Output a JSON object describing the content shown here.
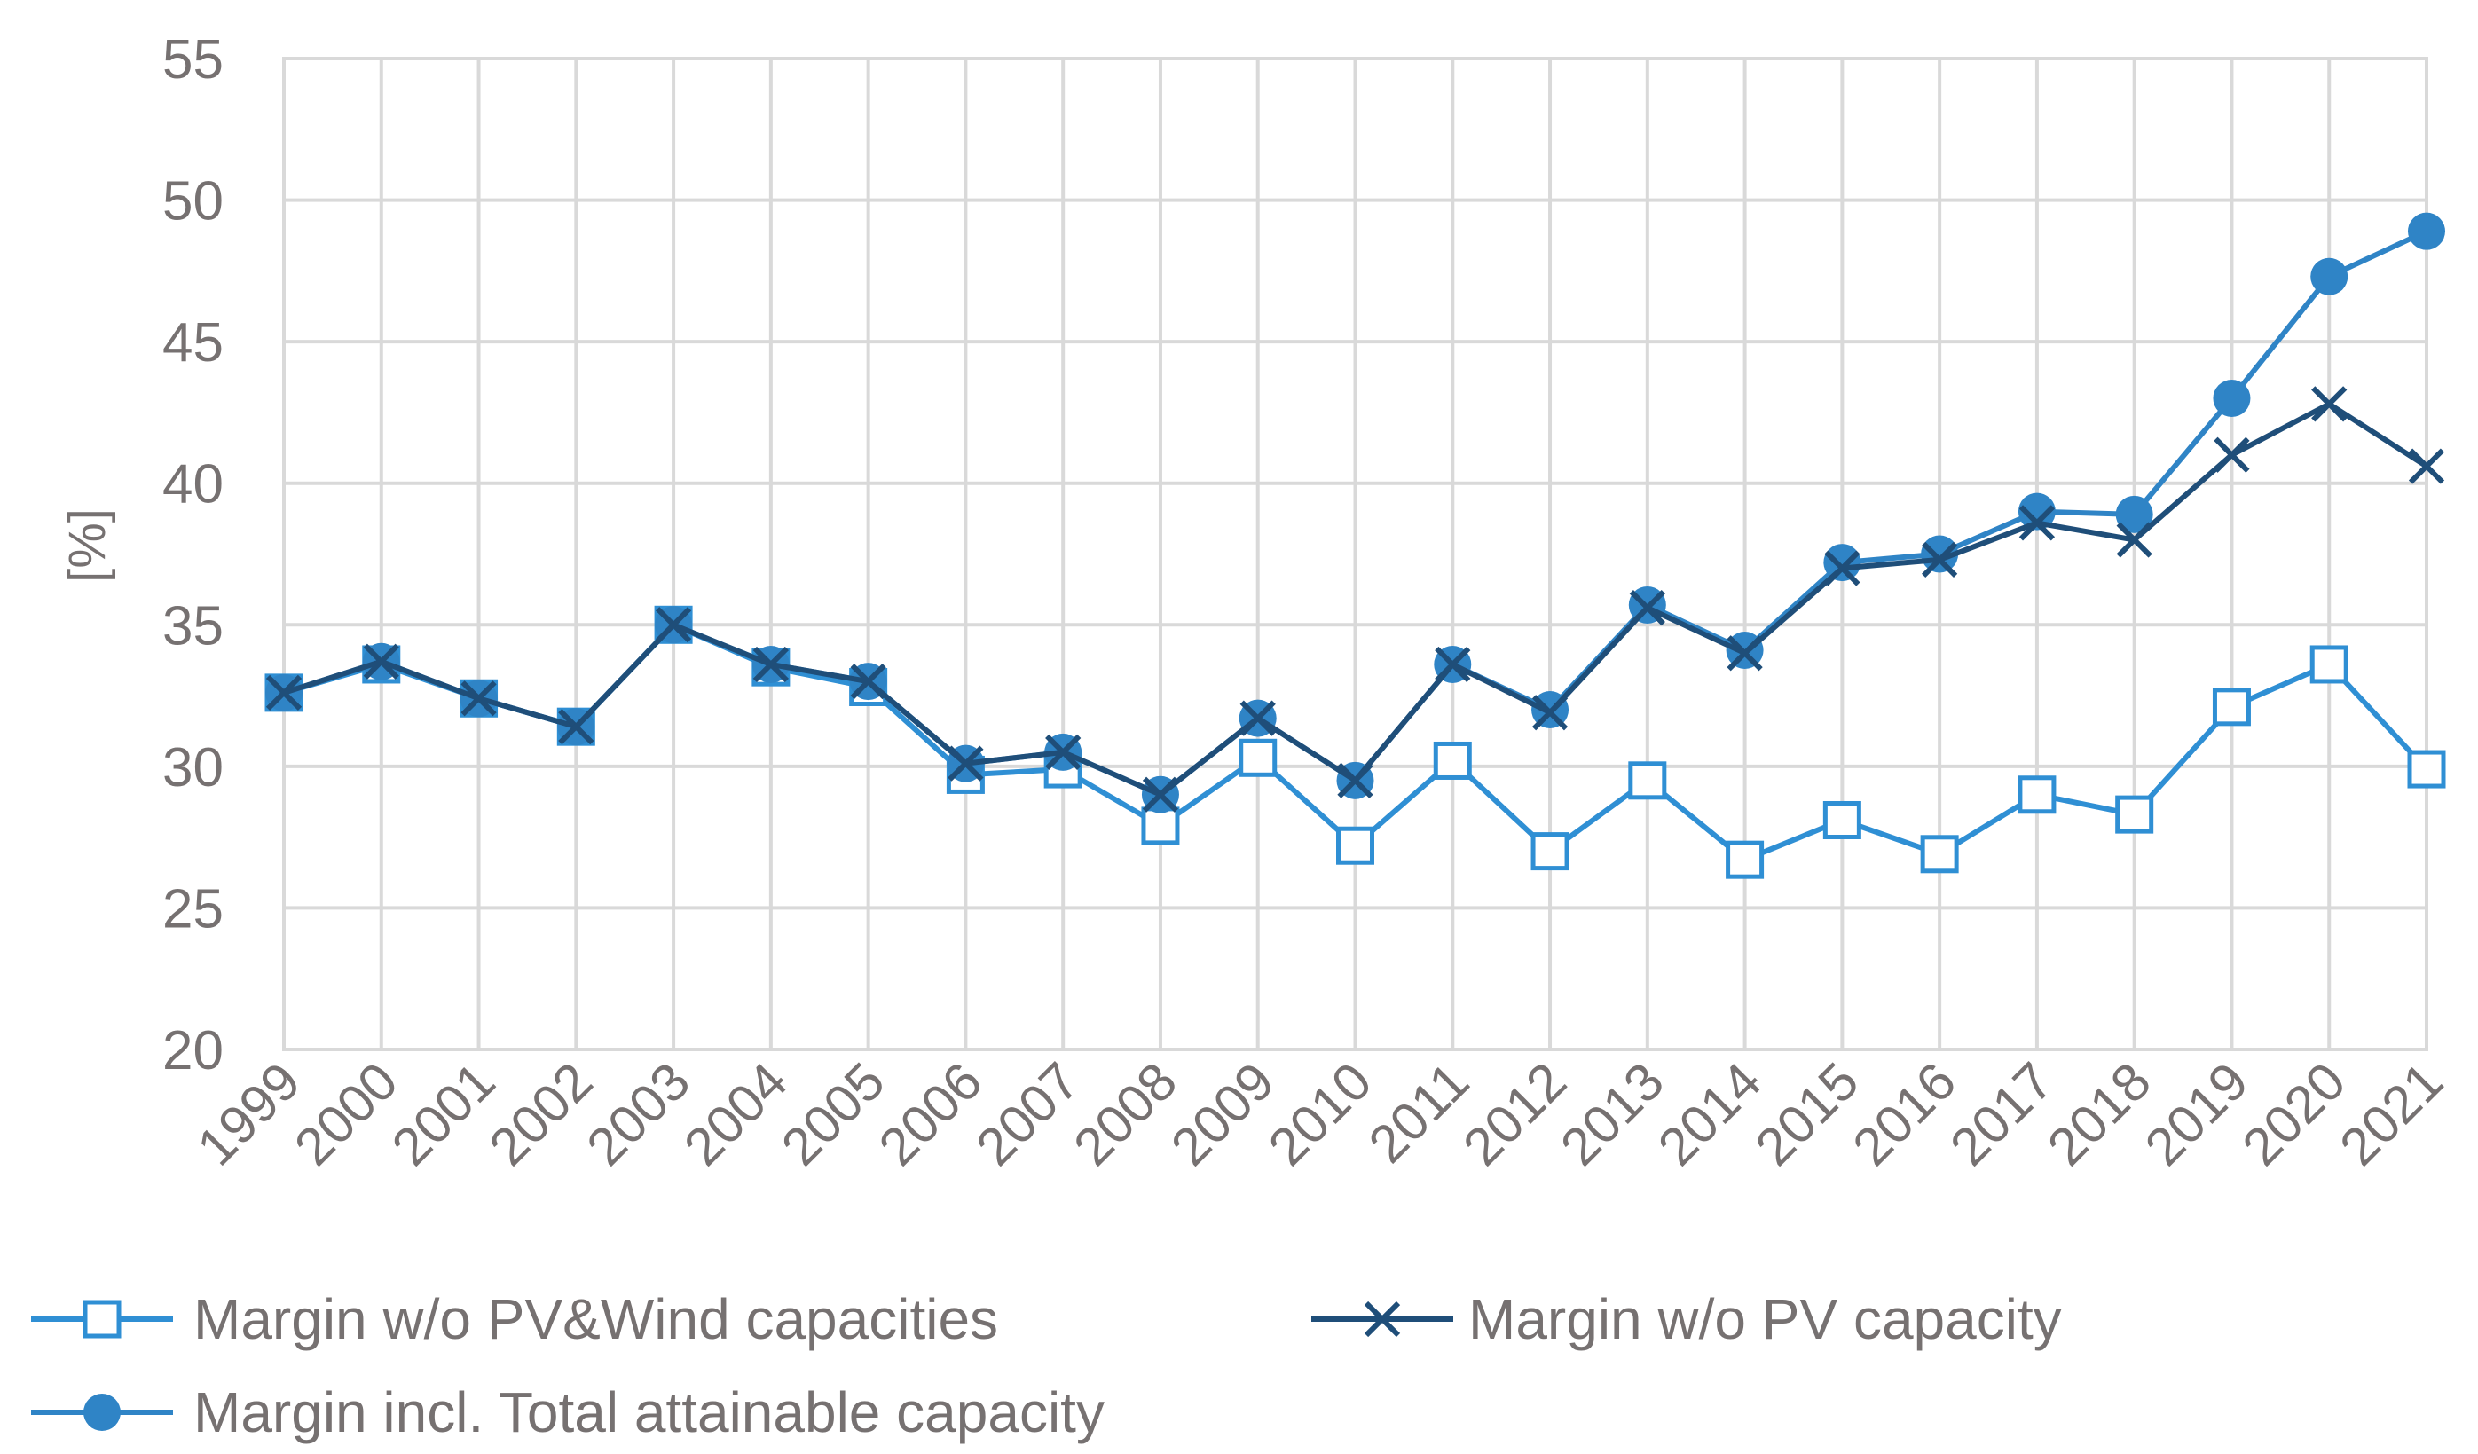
{
  "chart_data": {
    "type": "line",
    "title": "",
    "xlabel": "",
    "ylabel": "[%]",
    "ylim": [
      20,
      55
    ],
    "yticks": [
      20,
      25,
      30,
      35,
      40,
      45,
      50,
      55
    ],
    "grid": true,
    "legend_position": "bottom",
    "categories": [
      "1999",
      "2000",
      "2001",
      "2002",
      "2003",
      "2004",
      "2005",
      "2006",
      "2007",
      "2008",
      "2009",
      "2010",
      "2011",
      "2012",
      "2013",
      "2014",
      "2015",
      "2016",
      "2017",
      "2018",
      "2019",
      "2020",
      "2021"
    ],
    "series": [
      {
        "name": "Margin w/o PV&Wind capacities",
        "marker": "square-open",
        "color": "#2F8FD4",
        "values": [
          32.6,
          33.6,
          32.4,
          31.4,
          35.0,
          33.5,
          32.8,
          29.7,
          29.9,
          27.9,
          30.3,
          27.2,
          30.2,
          27.0,
          29.5,
          26.7,
          28.1,
          26.9,
          29.0,
          28.3,
          32.1,
          33.6,
          29.9
        ]
      },
      {
        "name": "Margin w/o PV capacity",
        "marker": "x",
        "color": "#1F4E79",
        "values": [
          32.6,
          33.7,
          32.4,
          31.4,
          35.0,
          33.6,
          33.0,
          30.1,
          30.5,
          29.0,
          31.7,
          29.5,
          33.6,
          31.9,
          35.6,
          34.0,
          37.0,
          37.3,
          38.6,
          38.0,
          41.0,
          42.8,
          40.6
        ]
      },
      {
        "name": "Margin incl. Total attainable capacity",
        "marker": "circle",
        "color": "#2F84C6",
        "values": [
          32.6,
          33.7,
          32.4,
          31.4,
          35.0,
          33.6,
          33.0,
          30.1,
          30.5,
          29.0,
          31.7,
          29.5,
          33.6,
          32.0,
          35.7,
          34.1,
          37.2,
          37.5,
          39.0,
          38.9,
          43.0,
          47.3,
          48.9
        ]
      }
    ]
  }
}
